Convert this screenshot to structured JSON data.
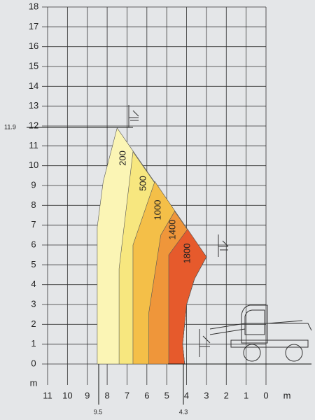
{
  "chart_data": {
    "type": "region",
    "xlim": [
      11,
      0
    ],
    "ylim": [
      0,
      18
    ],
    "xticks": [
      11,
      10,
      9,
      8,
      7,
      6,
      5,
      4,
      3,
      2,
      1,
      0
    ],
    "yticks": [
      0,
      1,
      2,
      3,
      4,
      5,
      6,
      7,
      8,
      9,
      10,
      11,
      12,
      13,
      14,
      15,
      16,
      17,
      18
    ],
    "xlabel": "m",
    "ylabel": "m",
    "grid": true,
    "annotations": [
      "11.9",
      "9.5",
      "4.3"
    ],
    "series": [
      {
        "name": "200",
        "color": "#fbf5b5",
        "x": [
          8.5,
          8.5,
          8.2,
          7.5,
          3.0,
          3.6,
          4.0,
          4.2,
          4.1
        ],
        "y": [
          0,
          6.9,
          9.2,
          11.9,
          5.4,
          4.3,
          3.0,
          1.0,
          0
        ]
      },
      {
        "name": "500",
        "color": "#f7e77f",
        "x": [
          7.4,
          7.4,
          6.7,
          3.0,
          3.6,
          4.0,
          4.2,
          4.1
        ],
        "y": [
          0,
          4.8,
          10.7,
          5.4,
          4.3,
          3.0,
          1.0,
          0
        ]
      },
      {
        "name": "1000",
        "color": "#f4bf48",
        "x": [
          6.7,
          6.7,
          5.6,
          3.0,
          3.6,
          4.0,
          4.2,
          4.1
        ],
        "y": [
          0,
          6.0,
          9.2,
          5.4,
          4.3,
          3.0,
          1.0,
          0
        ]
      },
      {
        "name": "1400",
        "color": "#ef963a",
        "x": [
          5.9,
          5.9,
          5.3,
          4.6,
          3.0,
          3.6,
          4.0,
          4.2,
          4.1
        ],
        "y": [
          0,
          2.6,
          6.5,
          7.7,
          5.4,
          4.3,
          3.0,
          1.0,
          0
        ]
      },
      {
        "name": "1800",
        "color": "#e65a2c",
        "x": [
          4.9,
          4.9,
          3.95,
          3.0,
          3.6,
          4.0,
          4.2,
          4.1
        ],
        "y": [
          0,
          5.5,
          6.8,
          5.4,
          4.3,
          3.0,
          1.0,
          0
        ]
      }
    ]
  }
}
